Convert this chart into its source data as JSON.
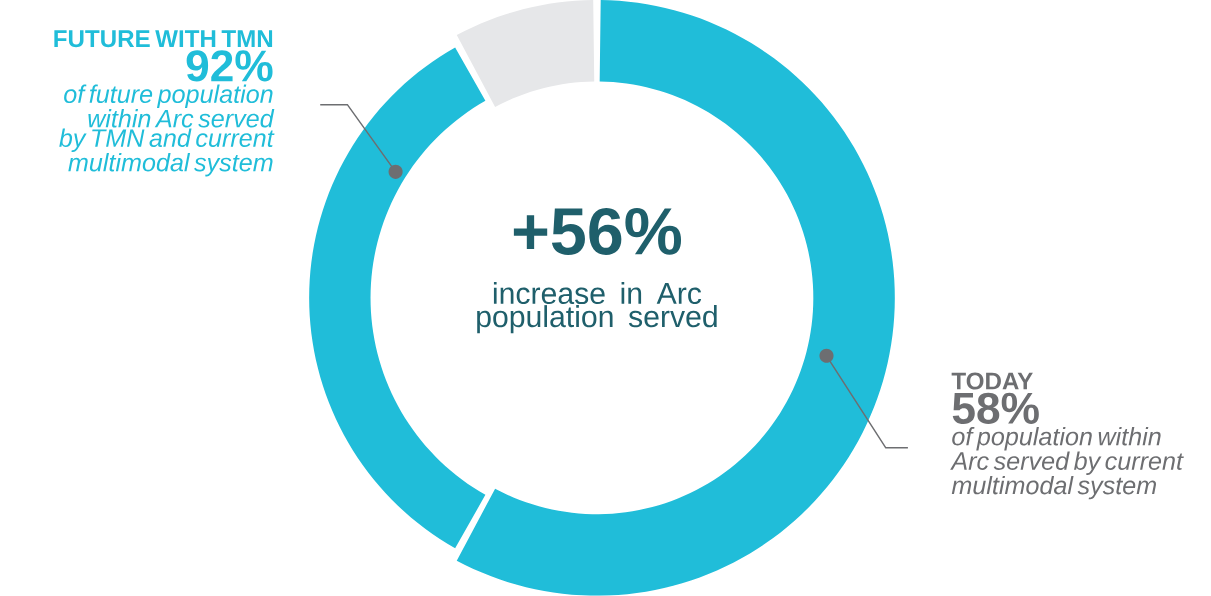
{
  "chart_data": {
    "type": "donut",
    "categories": [
      "TODAY",
      "FUTURE WITH TMN",
      null
    ],
    "values": [
      58,
      34,
      8
    ],
    "colors": [
      "#20bdd9",
      "#20bdd9",
      "#e6e7e9"
    ],
    "annotations": [
      "+56%",
      "increase in Arc population served",
      "58%",
      "of population within Arc served by current multimodal system",
      "92%",
      "of future population within Arc served by TMN and current multimodal system"
    ]
  }
}
